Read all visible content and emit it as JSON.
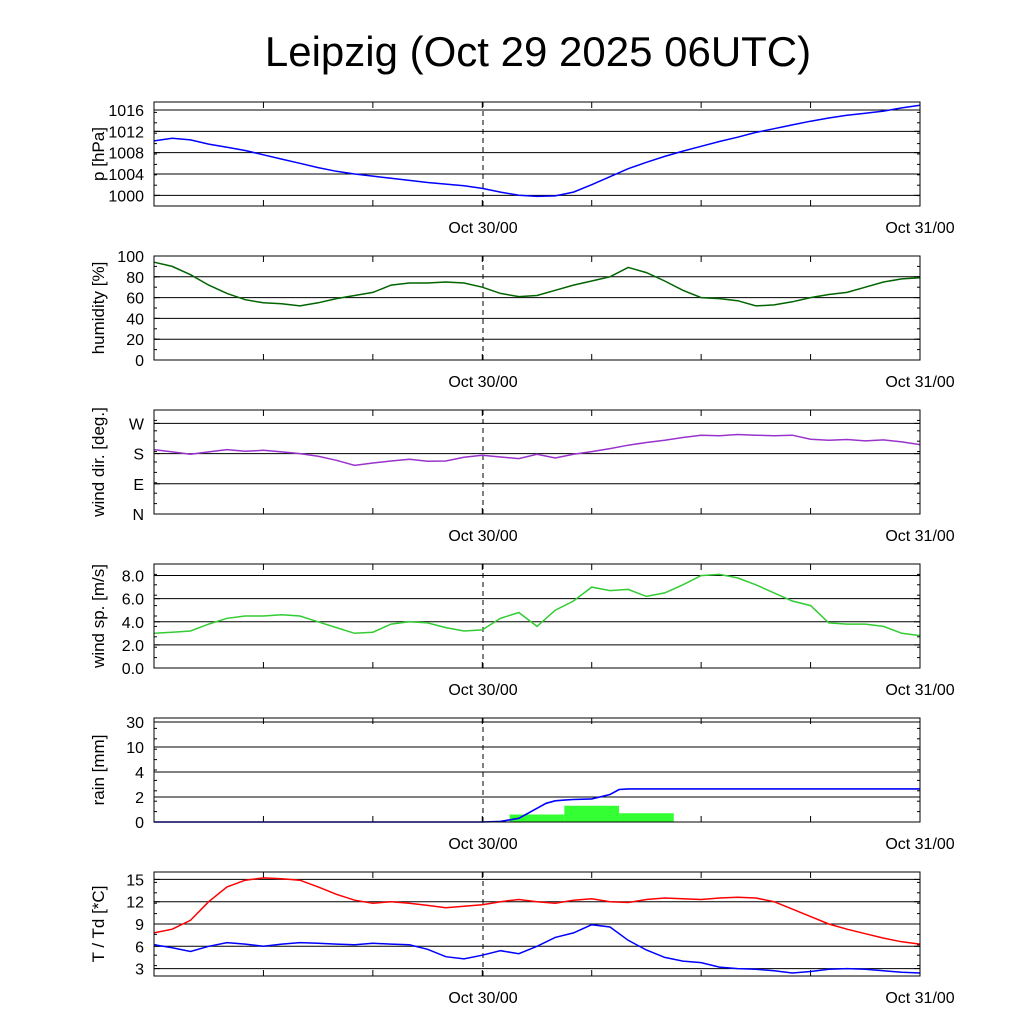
{
  "title": "Leipzig (Oct 29 2025 06UTC)",
  "x_labels": [
    "Oct 30/00",
    "Oct 31/00"
  ],
  "chart_data": [
    {
      "type": "line",
      "ylabel": "p [hPa]",
      "yticks": [
        "1000",
        "1004",
        "1008",
        "1012",
        "1016"
      ],
      "ylim": [
        998,
        1017.5
      ],
      "color": "#0000ff",
      "x": [
        0,
        1,
        2,
        3,
        4,
        5,
        6,
        7,
        8,
        9,
        10,
        11,
        12,
        13,
        14,
        15,
        16,
        17,
        18,
        19,
        20,
        21,
        22,
        23,
        24,
        25,
        26,
        27,
        28,
        29,
        30,
        31,
        32,
        33,
        34,
        35,
        36,
        37,
        38,
        39,
        40,
        41,
        42
      ],
      "values": [
        1010.2,
        1010.7,
        1010.4,
        1009.6,
        1009.0,
        1008.4,
        1007.6,
        1006.8,
        1006.0,
        1005.2,
        1004.5,
        1004.0,
        1003.6,
        1003.2,
        1002.8,
        1002.4,
        1002.1,
        1001.8,
        1001.3,
        1000.6,
        1000.0,
        999.8,
        999.9,
        1000.6,
        1002.0,
        1003.5,
        1005.0,
        1006.2,
        1007.3,
        1008.3,
        1009.2,
        1010.1,
        1010.9,
        1011.8,
        1012.5,
        1013.2,
        1013.9,
        1014.5,
        1015.0,
        1015.4,
        1015.8,
        1016.4,
        1016.9
      ],
      "xlim": [
        0,
        42
      ],
      "grid": "horizontal"
    },
    {
      "type": "line",
      "ylabel": "humidity [%]",
      "yticks": [
        "0",
        "20",
        "40",
        "60",
        "80",
        "100"
      ],
      "ylim": [
        0,
        100
      ],
      "color": "#006400",
      "x": [
        0,
        1,
        2,
        3,
        4,
        5,
        6,
        7,
        8,
        9,
        10,
        11,
        12,
        13,
        14,
        15,
        16,
        17,
        18,
        19,
        20,
        21,
        22,
        23,
        24,
        25,
        26,
        27,
        28,
        29,
        30,
        31,
        32,
        33,
        34,
        35,
        36,
        37,
        38,
        39,
        40,
        41,
        42
      ],
      "values": [
        94,
        90,
        82,
        72,
        64,
        58,
        55,
        54,
        52,
        55,
        59,
        62,
        65,
        72,
        74,
        74,
        75,
        74,
        70,
        64,
        61,
        62,
        67,
        72,
        76,
        80,
        89,
        84,
        76,
        67,
        60,
        59,
        57,
        52,
        53,
        56,
        60,
        63,
        65,
        70,
        75,
        78,
        79
      ],
      "xlim": [
        0,
        42
      ],
      "grid": "horizontal"
    },
    {
      "type": "line",
      "ylabel": "wind dir. [deg.]",
      "yticks": [
        "N",
        "E",
        "S",
        "W"
      ],
      "ylim": [
        0,
        310
      ],
      "color": "#9933cc",
      "x": [
        0,
        1,
        2,
        3,
        4,
        5,
        6,
        7,
        8,
        9,
        10,
        11,
        12,
        13,
        14,
        15,
        16,
        17,
        18,
        19,
        20,
        21,
        22,
        23,
        24,
        25,
        26,
        27,
        28,
        29,
        30,
        31,
        32,
        33,
        34,
        35,
        36,
        37,
        38,
        39,
        40,
        41,
        42
      ],
      "values": [
        192,
        185,
        178,
        185,
        192,
        187,
        190,
        185,
        180,
        172,
        160,
        145,
        152,
        158,
        163,
        157,
        158,
        169,
        175,
        170,
        165,
        178,
        167,
        178,
        186,
        195,
        205,
        213,
        220,
        228,
        235,
        233,
        237,
        235,
        233,
        235,
        223,
        220,
        222,
        218,
        221,
        215,
        207
      ],
      "xlim": [
        0,
        42
      ],
      "grid": "horizontal"
    },
    {
      "type": "line",
      "ylabel": "wind sp. [m/s]",
      "yticks": [
        "0.0",
        "2.0",
        "4.0",
        "6.0",
        "8.0"
      ],
      "ylim": [
        0,
        9
      ],
      "color": "#33cc33",
      "x": [
        0,
        1,
        2,
        3,
        4,
        5,
        6,
        7,
        8,
        9,
        10,
        11,
        12,
        13,
        14,
        15,
        16,
        17,
        18,
        19,
        20,
        21,
        22,
        23,
        24,
        25,
        26,
        27,
        28,
        29,
        30,
        31,
        32,
        33,
        34,
        35,
        36,
        37,
        38,
        39,
        40,
        41,
        42
      ],
      "values": [
        3.0,
        3.1,
        3.2,
        3.8,
        4.3,
        4.5,
        4.5,
        4.6,
        4.5,
        4.0,
        3.5,
        3.0,
        3.1,
        3.8,
        4.0,
        3.9,
        3.5,
        3.2,
        3.3,
        4.3,
        4.8,
        3.6,
        5.0,
        5.8,
        7.0,
        6.7,
        6.8,
        6.2,
        6.5,
        7.2,
        8.0,
        8.1,
        7.8,
        7.2,
        6.5,
        5.8,
        5.4,
        3.9,
        3.8,
        3.8,
        3.6,
        3.0,
        2.8
      ],
      "xlim": [
        0,
        42
      ],
      "grid": "horizontal"
    },
    {
      "type": "bar",
      "ylabel": "rain [mm]",
      "yticks": [
        "0",
        "2",
        "4",
        "10",
        "30"
      ],
      "ytick_values": [
        0,
        2,
        4,
        10,
        30
      ],
      "color": "#33ff33",
      "bars": [
        {
          "x0": 19.5,
          "x1": 22.5,
          "value": 0.6
        },
        {
          "x0": 22.5,
          "x1": 25.5,
          "value": 1.3
        },
        {
          "x0": 25.5,
          "x1": 28.5,
          "value": 0.7
        }
      ],
      "accumulated": {
        "color": "#0000ff",
        "x": [
          0,
          18,
          19,
          20,
          20.5,
          21,
          21.5,
          22,
          22.5,
          23,
          24,
          25,
          25.5,
          26,
          28,
          30,
          42
        ],
        "values": [
          0,
          0,
          0.05,
          0.3,
          0.7,
          1.1,
          1.5,
          1.7,
          1.75,
          1.8,
          1.85,
          2.2,
          2.6,
          2.65,
          2.65,
          2.65,
          2.65
        ]
      },
      "xlim": [
        0,
        42
      ],
      "grid": "horizontal"
    },
    {
      "type": "line",
      "ylabel": "T / Td [*C]",
      "yticks": [
        "3",
        "6",
        "9",
        "12",
        "15"
      ],
      "ylim": [
        2,
        16
      ],
      "xlim": [
        0,
        42
      ],
      "grid": "horizontal",
      "series": [
        {
          "color": "#ff0000",
          "x": [
            0,
            1,
            2,
            3,
            4,
            5,
            6,
            7,
            8,
            9,
            10,
            11,
            12,
            13,
            14,
            15,
            16,
            17,
            18,
            19,
            20,
            21,
            22,
            23,
            24,
            25,
            26,
            27,
            28,
            29,
            30,
            31,
            32,
            33,
            34,
            35,
            36,
            37,
            38,
            39,
            40,
            41,
            42
          ],
          "values": [
            7.8,
            8.3,
            9.5,
            12.0,
            14.0,
            14.9,
            15.2,
            15.1,
            14.9,
            14.0,
            13.0,
            12.2,
            11.8,
            12.0,
            11.8,
            11.5,
            11.2,
            11.4,
            11.6,
            12.0,
            12.3,
            12.0,
            11.8,
            12.2,
            12.4,
            12.0,
            11.9,
            12.3,
            12.5,
            12.4,
            12.3,
            12.5,
            12.6,
            12.5,
            12.0,
            11.0,
            10.0,
            9.0,
            8.3,
            7.7,
            7.1,
            6.6,
            6.3
          ]
        },
        {
          "color": "#0000ff",
          "x": [
            0,
            1,
            2,
            3,
            4,
            5,
            6,
            7,
            8,
            9,
            10,
            11,
            12,
            13,
            14,
            15,
            16,
            17,
            18,
            19,
            20,
            21,
            22,
            23,
            24,
            25,
            26,
            27,
            28,
            29,
            30,
            31,
            32,
            33,
            34,
            35,
            36,
            37,
            38,
            39,
            40,
            41,
            42
          ],
          "values": [
            6.2,
            5.8,
            5.3,
            6.0,
            6.5,
            6.3,
            6.0,
            6.3,
            6.5,
            6.4,
            6.3,
            6.2,
            6.4,
            6.3,
            6.2,
            5.6,
            4.6,
            4.3,
            4.8,
            5.4,
            5.0,
            6.0,
            7.2,
            7.8,
            8.9,
            8.6,
            6.8,
            5.5,
            4.5,
            4.0,
            3.8,
            3.2,
            3.0,
            2.9,
            2.7,
            2.4,
            2.6,
            2.9,
            3.0,
            2.9,
            2.7,
            2.5,
            2.4
          ]
        }
      ]
    }
  ]
}
